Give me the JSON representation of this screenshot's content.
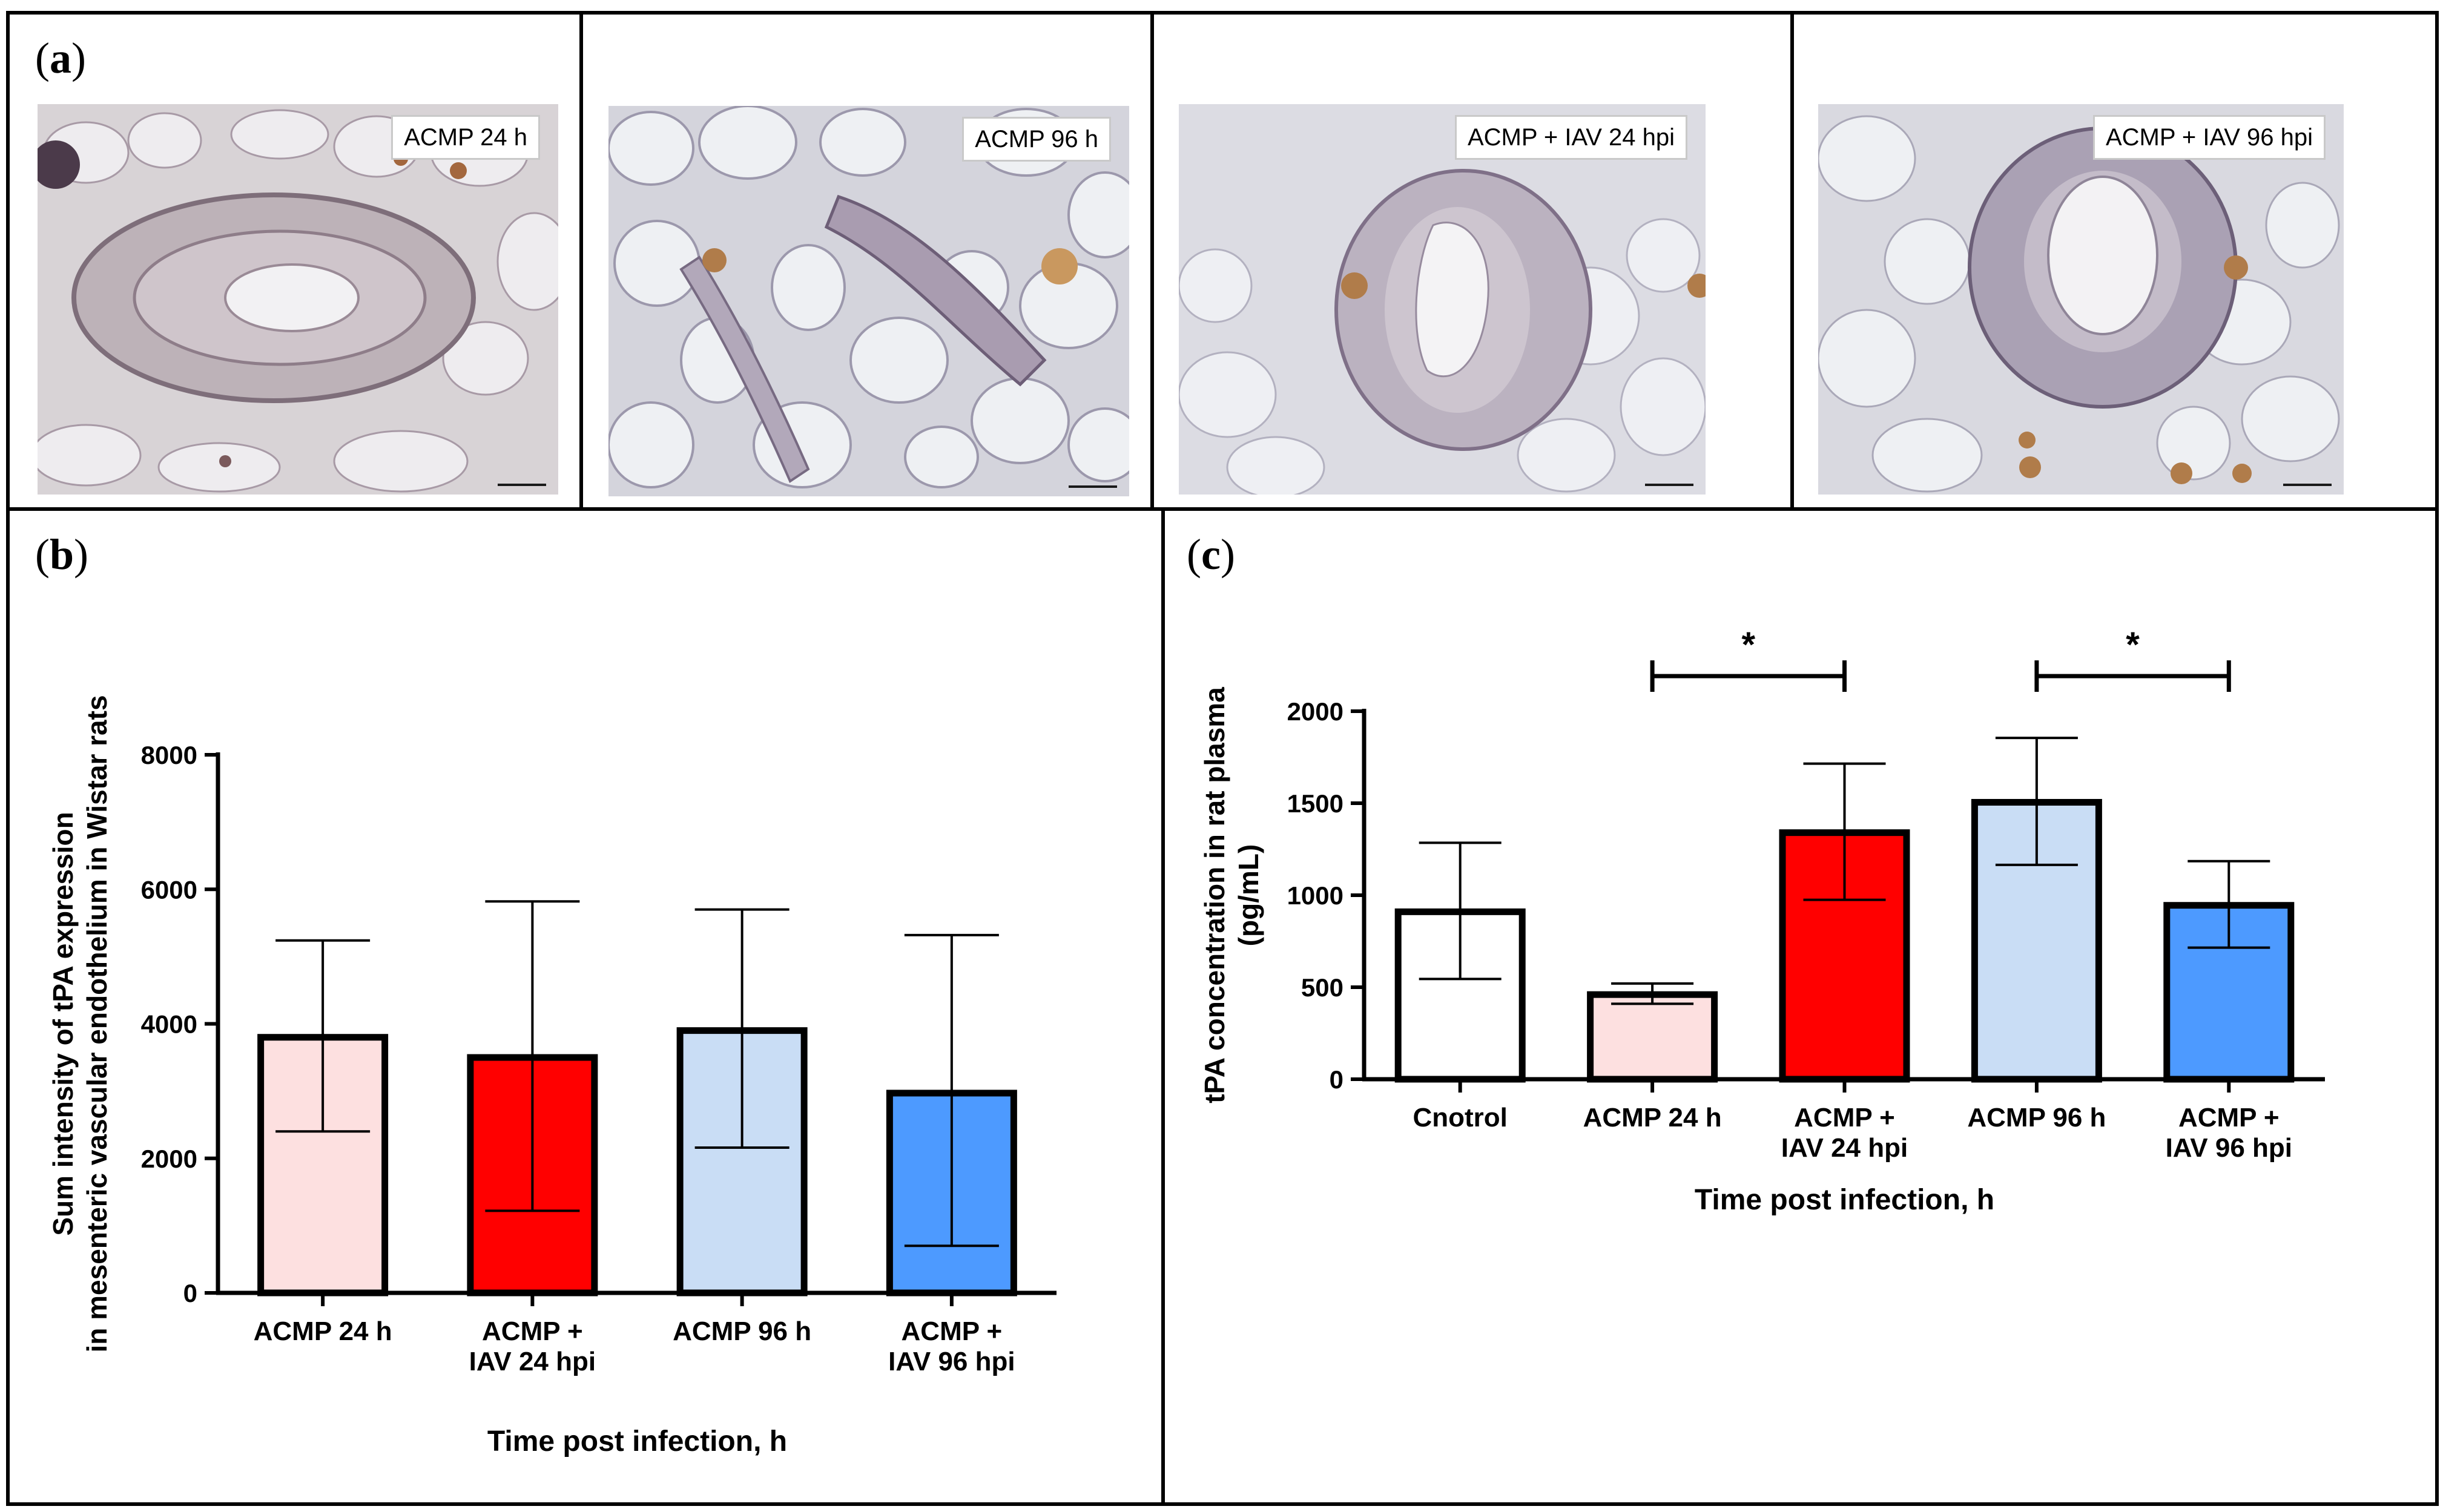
{
  "panel_a": {
    "letter": "a",
    "images": [
      {
        "label": "ACMP 24 h"
      },
      {
        "label": "ACMP 96 h"
      },
      {
        "label": "ACMP + IAV 24 hpi"
      },
      {
        "label": "ACMP + IAV 96 hpi"
      }
    ]
  },
  "colors": {
    "control": "#ffffff",
    "acmp24": "#fde0e0",
    "acmp_iav24": "#ff0000",
    "acmp96": "#c9ddf5",
    "acmp_iav96": "#4d9aff"
  },
  "chart_data": [
    {
      "panel": "b",
      "type": "bar",
      "categories": [
        [
          "ACMP 24 h"
        ],
        [
          "ACMP +",
          "IAV 24 hpi"
        ],
        [
          "ACMP 96 h"
        ],
        [
          "ACMP +",
          "IAV 96 hpi"
        ]
      ],
      "values": [
        3800,
        3500,
        3900,
        2970
      ],
      "error_low": [
        2400,
        1220,
        2160,
        700
      ],
      "error_high": [
        5240,
        5820,
        5700,
        5320
      ],
      "bar_colors": [
        "#fde0e0",
        "#ff0000",
        "#c9ddf5",
        "#4d9aff"
      ],
      "ylabel_lines": [
        "Sum intensity of tPA expression",
        "in mesenteric vascular endothelium in Wistar rats"
      ],
      "xlabel": "Time post infection, h",
      "yticks": [
        0,
        2000,
        4000,
        6000,
        8000
      ],
      "ylim": [
        0,
        8000
      ],
      "grid": false
    },
    {
      "panel": "c",
      "type": "bar",
      "categories": [
        [
          "Cnotrol"
        ],
        [
          "ACMP 24 h"
        ],
        [
          "ACMP +",
          "IAV 24 hpi"
        ],
        [
          "ACMP 96 h"
        ],
        [
          "ACMP +",
          "IAV 96 hpi"
        ]
      ],
      "values": [
        910,
        460,
        1340,
        1505,
        945
      ],
      "error_low": [
        545,
        410,
        975,
        1165,
        715
      ],
      "error_high": [
        1285,
        520,
        1715,
        1855,
        1185
      ],
      "bar_colors": [
        "#ffffff",
        "#fde0e0",
        "#ff0000",
        "#c9ddf5",
        "#4d9aff"
      ],
      "ylabel_lines": [
        "tPA concentration in rat plasma",
        "(pg/mL)"
      ],
      "xlabel": "Time post infection, h",
      "yticks": [
        0,
        500,
        1000,
        1500,
        2000
      ],
      "ylim": [
        0,
        2000
      ],
      "grid": false,
      "annotations": [
        {
          "text": "*",
          "from": 1,
          "to": 2
        },
        {
          "text": "*",
          "from": 3,
          "to": 4
        }
      ]
    }
  ],
  "panel_b": {
    "letter": "b"
  },
  "panel_c": {
    "letter": "c"
  }
}
